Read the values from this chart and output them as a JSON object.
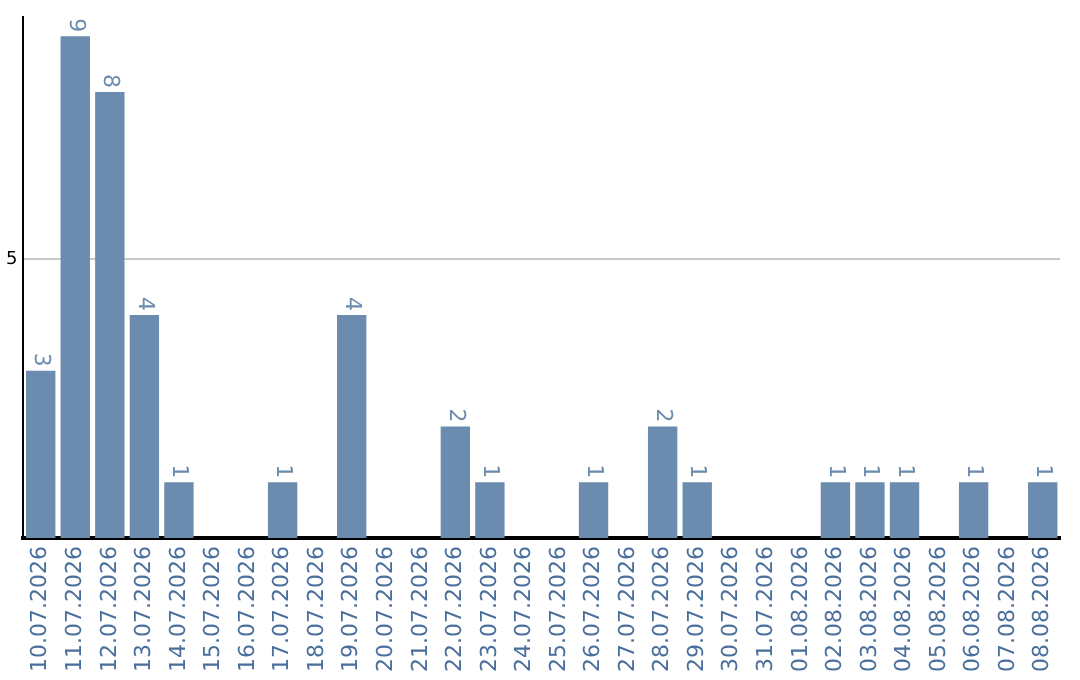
{
  "chart_data": {
    "type": "bar",
    "categories": [
      "10.07.2026",
      "11.07.2026",
      "12.07.2026",
      "13.07.2026",
      "14.07.2026",
      "15.07.2026",
      "16.07.2026",
      "17.07.2026",
      "18.07.2026",
      "19.07.2026",
      "20.07.2026",
      "21.07.2026",
      "22.07.2026",
      "23.07.2026",
      "24.07.2026",
      "25.07.2026",
      "26.07.2026",
      "27.07.2026",
      "28.07.2026",
      "29.07.2026",
      "30.07.2026",
      "31.07.2026",
      "01.08.2026",
      "02.08.2026",
      "03.08.2026",
      "04.08.2026",
      "05.08.2026",
      "06.08.2026",
      "07.08.2026",
      "08.08.2026"
    ],
    "values": [
      3,
      9,
      8,
      4,
      1,
      0,
      0,
      1,
      0,
      4,
      0,
      0,
      2,
      1,
      0,
      0,
      1,
      0,
      2,
      1,
      0,
      0,
      0,
      1,
      1,
      1,
      0,
      1,
      0,
      1
    ],
    "value_labels": [
      "3",
      "9",
      "8",
      "4",
      "1",
      null,
      null,
      "1",
      null,
      "4",
      null,
      null,
      "2",
      "1",
      null,
      null,
      "1",
      null,
      "2",
      "1",
      null,
      null,
      null,
      "1",
      "1",
      "1",
      null,
      "1",
      null,
      "1"
    ],
    "color": "#6b8cae",
    "ylim": [
      0,
      9.35
    ],
    "yticks": [
      5
    ],
    "grid": "y",
    "legend": false
  }
}
